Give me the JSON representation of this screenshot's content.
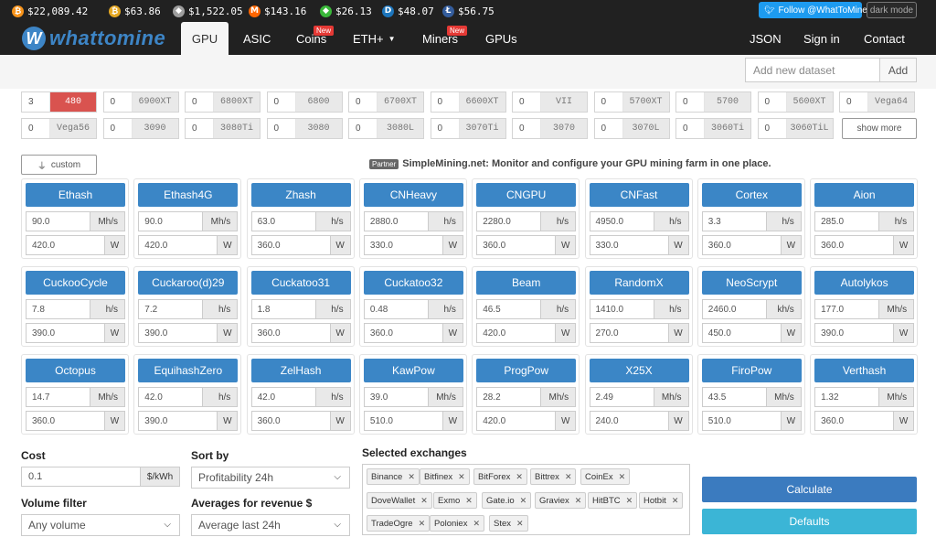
{
  "ticker": [
    {
      "icon": "bitcoin-icon",
      "glyph": "₿",
      "color": "#f7931a",
      "value": "$22,089.42"
    },
    {
      "icon": "bitcoin-gold-icon",
      "glyph": "₿",
      "color": "#e5a823",
      "value": "$63.86"
    },
    {
      "icon": "ethereum-icon",
      "glyph": "◆",
      "color": "#9e9e9e",
      "value": "$1,522.05"
    },
    {
      "icon": "monero-icon",
      "glyph": "M",
      "color": "#ff6600",
      "value": "$143.16"
    },
    {
      "icon": "ethereum-classic-icon",
      "glyph": "◆",
      "color": "#3ab83a",
      "value": "$26.13"
    },
    {
      "icon": "dash-icon",
      "glyph": "D",
      "color": "#1c75bc",
      "value": "$48.07"
    },
    {
      "icon": "litecoin-icon",
      "glyph": "Ł",
      "color": "#345d9d",
      "value": "$56.75"
    }
  ],
  "follow_label": "Follow @WhatToMine",
  "darkmode_label": "dark mode",
  "logo": {
    "mark": "W",
    "text": "whattomine"
  },
  "nav": {
    "gpu": "GPU",
    "asic": "ASIC",
    "coins": "Coins",
    "ethplus": "ETH+",
    "miners": "Miners",
    "gpus": "GPUs",
    "new_badge": "New",
    "json": "JSON",
    "signin": "Sign in",
    "contact": "Contact"
  },
  "dataset": {
    "placeholder": "Add new dataset",
    "add_label": "Add"
  },
  "gpus_row1": [
    {
      "qty": "3",
      "name": "480",
      "selected": true
    },
    {
      "qty": "0",
      "name": "6900XT"
    },
    {
      "qty": "0",
      "name": "6800XT"
    },
    {
      "qty": "0",
      "name": "6800"
    },
    {
      "qty": "0",
      "name": "6700XT"
    },
    {
      "qty": "0",
      "name": "6600XT"
    },
    {
      "qty": "0",
      "name": "VII"
    },
    {
      "qty": "0",
      "name": "5700XT"
    },
    {
      "qty": "0",
      "name": "5700"
    },
    {
      "qty": "0",
      "name": "5600XT"
    },
    {
      "qty": "0",
      "name": "Vega64"
    }
  ],
  "gpus_row2": [
    {
      "qty": "0",
      "name": "Vega56"
    },
    {
      "qty": "0",
      "name": "3090"
    },
    {
      "qty": "0",
      "name": "3080Ti"
    },
    {
      "qty": "0",
      "name": "3080"
    },
    {
      "qty": "0",
      "name": "3080L"
    },
    {
      "qty": "0",
      "name": "3070Ti"
    },
    {
      "qty": "0",
      "name": "3070"
    },
    {
      "qty": "0",
      "name": "3070L"
    },
    {
      "qty": "0",
      "name": "3060Ti"
    },
    {
      "qty": "0",
      "name": "3060TiL"
    }
  ],
  "show_more": "show more",
  "custom_label": "custom",
  "partner": {
    "badge": "Partner",
    "text": "SimpleMining.net: Monitor and configure your GPU mining farm in one place."
  },
  "algorithms": [
    {
      "name": "Ethash",
      "hashrate": "90.0",
      "unit": "Mh/s",
      "power": "420.0",
      "power_unit": "W"
    },
    {
      "name": "Ethash4G",
      "hashrate": "90.0",
      "unit": "Mh/s",
      "power": "420.0",
      "power_unit": "W"
    },
    {
      "name": "Zhash",
      "hashrate": "63.0",
      "unit": "h/s",
      "power": "360.0",
      "power_unit": "W"
    },
    {
      "name": "CNHeavy",
      "hashrate": "2880.0",
      "unit": "h/s",
      "power": "330.0",
      "power_unit": "W"
    },
    {
      "name": "CNGPU",
      "hashrate": "2280.0",
      "unit": "h/s",
      "power": "360.0",
      "power_unit": "W"
    },
    {
      "name": "CNFast",
      "hashrate": "4950.0",
      "unit": "h/s",
      "power": "330.0",
      "power_unit": "W"
    },
    {
      "name": "Cortex",
      "hashrate": "3.3",
      "unit": "h/s",
      "power": "360.0",
      "power_unit": "W"
    },
    {
      "name": "Aion",
      "hashrate": "285.0",
      "unit": "h/s",
      "power": "360.0",
      "power_unit": "W"
    },
    {
      "name": "CuckooCycle",
      "hashrate": "7.8",
      "unit": "h/s",
      "power": "390.0",
      "power_unit": "W"
    },
    {
      "name": "Cuckaroo(d)29",
      "hashrate": "7.2",
      "unit": "h/s",
      "power": "390.0",
      "power_unit": "W"
    },
    {
      "name": "Cuckatoo31",
      "hashrate": "1.8",
      "unit": "h/s",
      "power": "360.0",
      "power_unit": "W"
    },
    {
      "name": "Cuckatoo32",
      "hashrate": "0.48",
      "unit": "h/s",
      "power": "360.0",
      "power_unit": "W"
    },
    {
      "name": "Beam",
      "hashrate": "46.5",
      "unit": "h/s",
      "power": "420.0",
      "power_unit": "W"
    },
    {
      "name": "RandomX",
      "hashrate": "1410.0",
      "unit": "h/s",
      "power": "270.0",
      "power_unit": "W"
    },
    {
      "name": "NeoScrypt",
      "hashrate": "2460.0",
      "unit": "kh/s",
      "power": "450.0",
      "power_unit": "W"
    },
    {
      "name": "Autolykos",
      "hashrate": "177.0",
      "unit": "Mh/s",
      "power": "390.0",
      "power_unit": "W"
    },
    {
      "name": "Octopus",
      "hashrate": "14.7",
      "unit": "Mh/s",
      "power": "360.0",
      "power_unit": "W"
    },
    {
      "name": "EquihashZero",
      "hashrate": "42.0",
      "unit": "h/s",
      "power": "390.0",
      "power_unit": "W"
    },
    {
      "name": "ZelHash",
      "hashrate": "42.0",
      "unit": "h/s",
      "power": "360.0",
      "power_unit": "W"
    },
    {
      "name": "KawPow",
      "hashrate": "39.0",
      "unit": "Mh/s",
      "power": "510.0",
      "power_unit": "W"
    },
    {
      "name": "ProgPow",
      "hashrate": "28.2",
      "unit": "Mh/s",
      "power": "420.0",
      "power_unit": "W"
    },
    {
      "name": "X25X",
      "hashrate": "2.49",
      "unit": "Mh/s",
      "power": "240.0",
      "power_unit": "W"
    },
    {
      "name": "FiroPow",
      "hashrate": "43.5",
      "unit": "Mh/s",
      "power": "510.0",
      "power_unit": "W"
    },
    {
      "name": "Verthash",
      "hashrate": "1.32",
      "unit": "Mh/s",
      "power": "360.0",
      "power_unit": "W"
    }
  ],
  "cost": {
    "label": "Cost",
    "value": "0.1",
    "unit": "$/kWh"
  },
  "volume": {
    "label": "Volume filter",
    "value": "Any volume"
  },
  "sort": {
    "label": "Sort by",
    "value": "Profitability 24h"
  },
  "averages": {
    "label": "Averages for revenue $",
    "value": "Average last 24h"
  },
  "exchanges": {
    "label": "Selected exchanges",
    "items": [
      "Binance",
      "Bitfinex",
      "BitForex",
      "Bittrex",
      "CoinEx",
      "DoveWallet",
      "Exmo",
      "Gate.io",
      "Graviex",
      "HitBTC",
      "Hotbit",
      "TradeOgre",
      "Poloniex",
      "Stex"
    ]
  },
  "calculate_label": "Calculate",
  "defaults_label": "Defaults"
}
